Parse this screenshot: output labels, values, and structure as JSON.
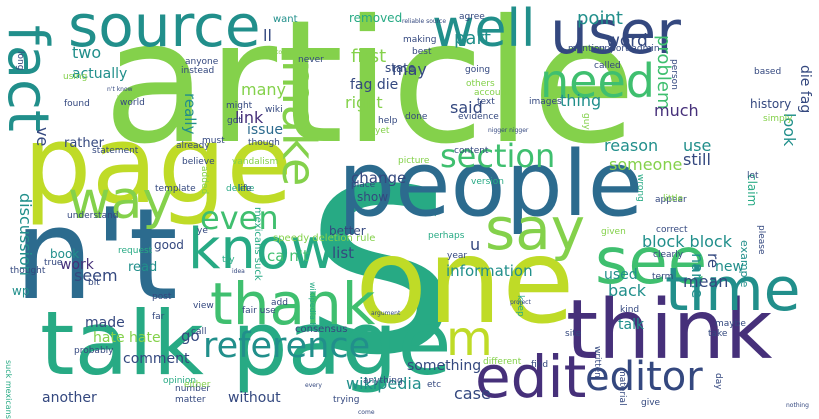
{
  "palette": {
    "purple": "#46307a",
    "navy": "#34487f",
    "blue": "#2c6b8e",
    "teal": "#218f8b",
    "cyan": "#27aa84",
    "green": "#3fbf6f",
    "lime": "#84d14b",
    "yellow": "#bfdb27"
  },
  "words": [
    {
      "text": "article",
      "size": 1,
      "color": "lime"
    },
    {
      "text": "s",
      "size": 1,
      "color": "cyan"
    },
    {
      "text": "page",
      "size": 1,
      "color": "yellow"
    },
    {
      "text": "people",
      "size": 1,
      "color": "blue"
    },
    {
      "text": "n't",
      "size": 1,
      "color": "blue"
    },
    {
      "text": "one",
      "size": 1,
      "color": "yellow"
    },
    {
      "text": "talk page",
      "size": 1,
      "color": "cyan"
    },
    {
      "text": "think",
      "size": 1,
      "color": "purple"
    },
    {
      "text": "source",
      "size": 1,
      "color": "teal"
    },
    {
      "text": "user",
      "size": 1,
      "color": "navy"
    },
    {
      "text": "fact",
      "size": 1,
      "color": "teal"
    },
    {
      "text": "well",
      "size": 1,
      "color": "teal"
    },
    {
      "text": "need",
      "size": 1,
      "color": "green"
    },
    {
      "text": "make",
      "size": 1,
      "color": "lime"
    },
    {
      "text": "way",
      "size": 1,
      "color": "lime"
    },
    {
      "text": "know",
      "size": 1,
      "color": "cyan"
    },
    {
      "text": "say",
      "size": 1,
      "color": "lime"
    },
    {
      "text": "see",
      "size": 1,
      "color": "green"
    },
    {
      "text": "time",
      "size": 1,
      "color": "teal"
    },
    {
      "text": "thank",
      "size": 1,
      "color": "green"
    },
    {
      "text": "edit",
      "size": 1,
      "color": "purple"
    },
    {
      "text": "m",
      "size": 1,
      "color": "yellow"
    },
    {
      "text": "even",
      "size": 1,
      "color": "green"
    },
    {
      "text": "section",
      "size": 1,
      "color": "green"
    },
    {
      "text": "reference",
      "size": 1,
      "color": "teal"
    },
    {
      "text": "editor",
      "size": 1,
      "color": "navy"
    },
    {
      "text": "problem",
      "size": 2,
      "color": "green"
    },
    {
      "text": "point",
      "size": 3,
      "color": "teal"
    },
    {
      "text": "word",
      "size": 3,
      "color": "navy"
    },
    {
      "text": "part",
      "size": 3,
      "color": "teal"
    },
    {
      "text": "two",
      "size": 3,
      "color": "teal"
    },
    {
      "text": "ll",
      "size": 3,
      "color": "navy"
    },
    {
      "text": "want",
      "size": 4,
      "color": "teal"
    },
    {
      "text": "first",
      "size": 3,
      "color": "lime"
    },
    {
      "text": "may",
      "size": 3,
      "color": "navy"
    },
    {
      "text": "actually",
      "size": 3,
      "color": "teal"
    },
    {
      "text": "fag die",
      "size": 3,
      "color": "navy"
    },
    {
      "text": "die fag",
      "size": 3,
      "color": "navy"
    },
    {
      "text": "thing",
      "size": 3,
      "color": "teal"
    },
    {
      "text": "said",
      "size": 3,
      "color": "navy"
    },
    {
      "text": "much",
      "size": 3,
      "color": "purple"
    },
    {
      "text": "right",
      "size": 3,
      "color": "lime"
    },
    {
      "text": "many",
      "size": 3,
      "color": "lime"
    },
    {
      "text": "really",
      "size": 3,
      "color": "teal"
    },
    {
      "text": "issue",
      "size": 3,
      "color": "blue"
    },
    {
      "text": "link",
      "size": 3,
      "color": "purple"
    },
    {
      "text": "look",
      "size": 3,
      "color": "teal"
    },
    {
      "text": "history",
      "size": 4,
      "color": "navy"
    },
    {
      "text": "reason",
      "size": 3,
      "color": "teal"
    },
    {
      "text": "use",
      "size": 3,
      "color": "teal"
    },
    {
      "text": "someone",
      "size": 3,
      "color": "lime"
    },
    {
      "text": "still",
      "size": 3,
      "color": "navy"
    },
    {
      "text": "discussion",
      "size": 3,
      "color": "teal"
    },
    {
      "text": "rather",
      "size": 4,
      "color": "navy"
    },
    {
      "text": "change",
      "size": 3,
      "color": "navy"
    },
    {
      "text": "show",
      "size": 4,
      "color": "navy"
    },
    {
      "text": "block block",
      "size": 3,
      "color": "teal"
    },
    {
      "text": "name",
      "size": 3,
      "color": "teal"
    },
    {
      "text": "re",
      "size": 3,
      "color": "navy"
    },
    {
      "text": "list",
      "size": 3,
      "color": "navy"
    },
    {
      "text": "better",
      "size": 4,
      "color": "navy"
    },
    {
      "text": "information",
      "size": 3,
      "color": "teal"
    },
    {
      "text": "new",
      "size": 3,
      "color": "teal"
    },
    {
      "text": "mean",
      "size": 3,
      "color": "navy"
    },
    {
      "text": "ca n't",
      "size": 3,
      "color": "green"
    },
    {
      "text": "seem",
      "size": 3,
      "color": "navy"
    },
    {
      "text": "good",
      "size": 4,
      "color": "navy"
    },
    {
      "text": "book",
      "size": 4,
      "color": "teal"
    },
    {
      "text": "work",
      "size": 3,
      "color": "purple"
    },
    {
      "text": "read",
      "size": 3,
      "color": "teal"
    },
    {
      "text": "made",
      "size": 3,
      "color": "navy"
    },
    {
      "text": "hate hate",
      "size": 3,
      "color": "lime"
    },
    {
      "text": "comment",
      "size": 3,
      "color": "navy"
    },
    {
      "text": "another",
      "size": 4,
      "color": "navy"
    },
    {
      "text": "something",
      "size": 3,
      "color": "navy"
    },
    {
      "text": "wikipedia",
      "size": 3,
      "color": "teal"
    },
    {
      "text": "case",
      "size": 3,
      "color": "navy"
    },
    {
      "text": "back",
      "size": 3,
      "color": "teal"
    },
    {
      "text": "talk",
      "size": 3,
      "color": "teal"
    },
    {
      "text": "without",
      "size": 4,
      "color": "navy"
    },
    {
      "text": "used",
      "size": 3,
      "color": "teal"
    },
    {
      "text": "claim",
      "size": 4,
      "color": "cyan"
    },
    {
      "text": "example",
      "size": 4,
      "color": "teal"
    },
    {
      "text": "ve",
      "size": 3,
      "color": "navy"
    },
    {
      "text": "removed",
      "size": 4,
      "color": "cyan"
    },
    {
      "text": "state",
      "size": 4,
      "color": "navy"
    },
    {
      "text": "go",
      "size": 3,
      "color": "navy"
    },
    {
      "text": "wp",
      "size": 4,
      "color": "teal"
    },
    {
      "text": "u",
      "size": 3,
      "color": "navy"
    },
    {
      "text": "speedy deletion rule",
      "size": 5,
      "color": "lime"
    },
    {
      "text": "mexicans suck",
      "size": 5,
      "color": "cyan"
    },
    {
      "text": "suck mexicans",
      "size": 5,
      "color": "cyan"
    },
    {
      "text": "wikipedia hi",
      "size": 5,
      "color": "cyan"
    },
    {
      "text": "fair use",
      "size": 5,
      "color": "navy"
    },
    {
      "text": "consensus",
      "size": 5,
      "color": "navy"
    },
    {
      "text": "opinion",
      "size": 5,
      "color": "cyan"
    },
    {
      "text": "statement",
      "size": 5,
      "color": "navy"
    },
    {
      "text": "vandalism",
      "size": 5,
      "color": "lime"
    },
    {
      "text": "evidence",
      "size": 5,
      "color": "navy"
    },
    {
      "text": "content",
      "size": 5,
      "color": "navy"
    },
    {
      "text": "picture",
      "size": 5,
      "color": "lime"
    },
    {
      "text": "believe",
      "size": 5,
      "color": "navy"
    },
    {
      "text": "template",
      "size": 5,
      "color": "navy"
    },
    {
      "text": "understand",
      "size": 5,
      "color": "navy"
    },
    {
      "text": "request",
      "size": 5,
      "color": "cyan"
    },
    {
      "text": "thought",
      "size": 5,
      "color": "navy"
    },
    {
      "text": "probably",
      "size": 5,
      "color": "navy"
    },
    {
      "text": "number",
      "size": 5,
      "color": "navy"
    },
    {
      "text": "matter",
      "size": 5,
      "color": "navy"
    },
    {
      "text": "anything",
      "size": 5,
      "color": "navy"
    },
    {
      "text": "trying",
      "size": 5,
      "color": "navy"
    },
    {
      "text": "different",
      "size": 5,
      "color": "lime"
    },
    {
      "text": "written",
      "size": 5,
      "color": "navy"
    },
    {
      "text": "material",
      "size": 5,
      "color": "navy"
    },
    {
      "text": "maybe",
      "size": 5,
      "color": "navy"
    },
    {
      "text": "correct",
      "size": 5,
      "color": "navy"
    },
    {
      "text": "appear",
      "size": 5,
      "color": "navy"
    },
    {
      "text": "wrong",
      "size": 5,
      "color": "cyan"
    },
    {
      "text": "anyone",
      "size": 5,
      "color": "navy"
    },
    {
      "text": "instead",
      "size": 5,
      "color": "navy"
    },
    {
      "text": "found",
      "size": 5,
      "color": "navy"
    },
    {
      "text": "world",
      "size": 5,
      "color": "navy"
    },
    {
      "text": "support admin",
      "size": 5,
      "color": "navy"
    },
    {
      "text": "making",
      "size": 5,
      "color": "navy"
    },
    {
      "text": "mention",
      "size": 5,
      "color": "navy"
    },
    {
      "text": "called",
      "size": 5,
      "color": "navy"
    },
    {
      "text": "based",
      "size": 5,
      "color": "navy"
    },
    {
      "text": "simply",
      "size": 5,
      "color": "lime"
    },
    {
      "text": "others",
      "size": 5,
      "color": "lime"
    },
    {
      "text": "account",
      "size": 5,
      "color": "lime"
    },
    {
      "text": "text",
      "size": 5,
      "color": "navy"
    },
    {
      "text": "images",
      "size": 5,
      "color": "navy"
    },
    {
      "text": "guy",
      "size": 5,
      "color": "lime"
    },
    {
      "text": "going",
      "size": 5,
      "color": "navy"
    },
    {
      "text": "agree",
      "size": 5,
      "color": "navy"
    },
    {
      "text": "best",
      "size": 5,
      "color": "navy"
    },
    {
      "text": "done",
      "size": 5,
      "color": "navy"
    },
    {
      "text": "yet",
      "size": 5,
      "color": "lime"
    },
    {
      "text": "help",
      "size": 5,
      "color": "navy"
    },
    {
      "text": "wiki",
      "size": 5,
      "color": "navy"
    },
    {
      "text": "might",
      "size": 5,
      "color": "navy"
    },
    {
      "text": "though",
      "size": 5,
      "color": "navy"
    },
    {
      "text": "must",
      "size": 5,
      "color": "navy"
    },
    {
      "text": "already",
      "size": 5,
      "color": "navy"
    },
    {
      "text": "added",
      "size": 5,
      "color": "lime"
    },
    {
      "text": "delete",
      "size": 5,
      "color": "cyan"
    },
    {
      "text": "life",
      "size": 5,
      "color": "navy"
    },
    {
      "text": "place",
      "size": 5,
      "color": "navy"
    },
    {
      "text": "version",
      "size": 5,
      "color": "cyan"
    },
    {
      "text": "perhaps",
      "size": 5,
      "color": "cyan"
    },
    {
      "text": "year",
      "size": 5,
      "color": "navy"
    },
    {
      "text": "given",
      "size": 5,
      "color": "lime"
    },
    {
      "text": "please",
      "size": 5,
      "color": "navy"
    },
    {
      "text": "clearly",
      "size": 5,
      "color": "navy"
    },
    {
      "text": "term",
      "size": 5,
      "color": "navy"
    },
    {
      "text": "kind",
      "size": 5,
      "color": "navy"
    },
    {
      "text": "site",
      "size": 5,
      "color": "navy"
    },
    {
      "text": "take",
      "size": 5,
      "color": "navy"
    },
    {
      "text": "day",
      "size": 5,
      "color": "navy"
    },
    {
      "text": "give",
      "size": 5,
      "color": "navy"
    },
    {
      "text": "etc",
      "size": 5,
      "color": "navy"
    },
    {
      "text": "either",
      "size": 5,
      "color": "lime"
    },
    {
      "text": "view",
      "size": 5,
      "color": "navy"
    },
    {
      "text": "call",
      "size": 5,
      "color": "navy"
    },
    {
      "text": "far",
      "size": 5,
      "color": "navy"
    },
    {
      "text": "post",
      "size": 5,
      "color": "navy"
    },
    {
      "text": "bit",
      "size": 5,
      "color": "navy"
    },
    {
      "text": "true",
      "size": 5,
      "color": "navy"
    },
    {
      "text": "try",
      "size": 5,
      "color": "cyan"
    },
    {
      "text": "lot",
      "size": 5,
      "color": "navy"
    },
    {
      "text": "little",
      "size": 5,
      "color": "lime"
    },
    {
      "text": "never",
      "size": 5,
      "color": "navy"
    },
    {
      "text": "find",
      "size": 5,
      "color": "navy"
    },
    {
      "text": "keep",
      "size": 5,
      "color": "cyan"
    },
    {
      "text": "add",
      "size": 5,
      "color": "navy"
    },
    {
      "text": "got",
      "size": 5,
      "color": "navy"
    },
    {
      "text": "ye",
      "size": 5,
      "color": "navy"
    },
    {
      "text": "using",
      "size": 5,
      "color": "lime"
    },
    {
      "text": "long",
      "size": 5,
      "color": "navy"
    },
    {
      "text": "person",
      "size": 5,
      "color": "navy"
    },
    {
      "text": "nothing",
      "size": 5,
      "color": "navy"
    },
    {
      "text": "come",
      "size": 5,
      "color": "navy"
    },
    {
      "text": "n't know",
      "size": 5,
      "color": "navy"
    },
    {
      "text": "least",
      "size": 5,
      "color": "lime"
    },
    {
      "text": "topic",
      "size": 5,
      "color": "lime"
    },
    {
      "text": "reliable source",
      "size": 6,
      "color": "navy"
    },
    {
      "text": "nigger nigger",
      "size": 6,
      "color": "navy"
    },
    {
      "text": "project",
      "size": 6,
      "color": "navy"
    },
    {
      "text": "argument",
      "size": 6,
      "color": "navy"
    },
    {
      "text": "every",
      "size": 6,
      "color": "navy"
    },
    {
      "text": "idea",
      "size": 6,
      "color": "navy"
    },
    {
      "text": "sorry",
      "size": 6,
      "color": "navy"
    },
    {
      "text": "hope",
      "size": 6,
      "color": "navy"
    },
    {
      "text": "note",
      "size": 6,
      "color": "navy"
    },
    {
      "text": "website",
      "size": 6,
      "color": "navy"
    },
    {
      "text": "sure",
      "size": 6,
      "color": "navy"
    }
  ]
}
